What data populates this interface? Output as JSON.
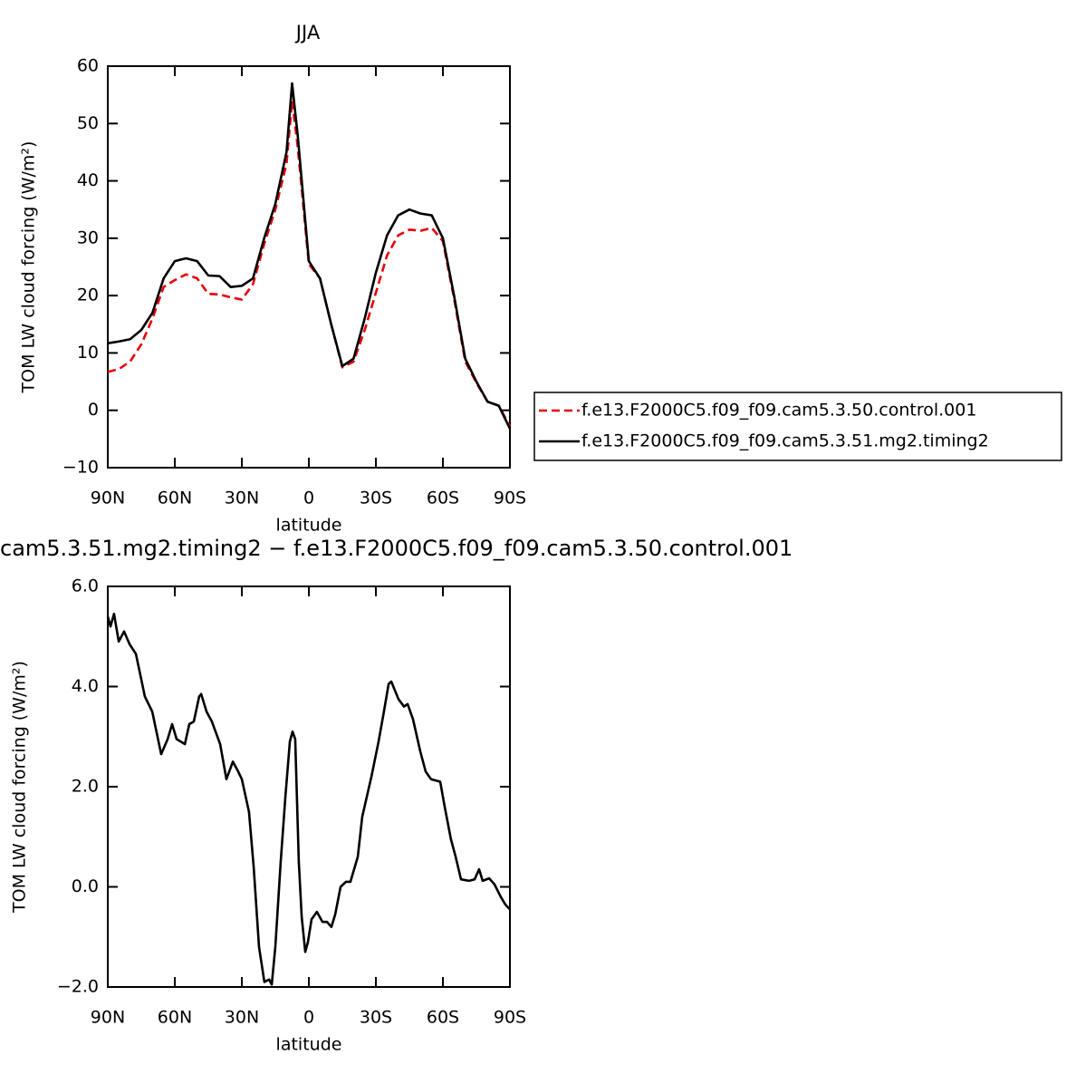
{
  "chart_data": [
    {
      "type": "line",
      "title": "JJA",
      "xlabel": "latitude",
      "ylabel": "TOM LW cloud forcing (W/m²)",
      "x": [
        90,
        85,
        80,
        75,
        70,
        65,
        60,
        55,
        50,
        45,
        40,
        35,
        30,
        25,
        20,
        15,
        10,
        7.5,
        5,
        0,
        -5,
        -10,
        -15,
        -20,
        -25,
        -30,
        -35,
        -40,
        -45,
        -50,
        -55,
        -60,
        -65,
        -70,
        -75,
        -80,
        -85,
        -90
      ],
      "xlim": [
        90,
        -90
      ],
      "xticks": [
        {
          "value": 90,
          "label": "90N"
        },
        {
          "value": 60,
          "label": "60N"
        },
        {
          "value": 30,
          "label": "30N"
        },
        0,
        {
          "value": -30,
          "label": "30S"
        },
        {
          "value": -60,
          "label": "60S"
        },
        {
          "value": -90,
          "label": "90S"
        }
      ],
      "ylim": [
        -10,
        60
      ],
      "yticks": [
        {
          "value": -10,
          "label": "−10"
        },
        0,
        10,
        20,
        30,
        40,
        50,
        60
      ],
      "legend": "right",
      "series": [
        {
          "name": "f.e13.F2000C5.f09_f09.cam5.3.50.control.001",
          "color": "#e8000b",
          "dashed": true,
          "values": [
            6.7,
            7.2,
            8.5,
            11.5,
            16,
            21.5,
            22.7,
            23.7,
            23,
            20.3,
            20.2,
            19.7,
            19.3,
            22,
            29,
            35,
            43,
            54,
            46,
            25.5,
            23,
            15,
            7.5,
            8.5,
            14,
            20.5,
            27,
            30.5,
            31.5,
            31.3,
            31.8,
            29.5,
            19.5,
            8.5,
            4.8,
            1.5,
            0.8,
            -2.8
          ]
        },
        {
          "name": "f.e13.F2000C5.f09_f09.cam5.3.51.mg2.timing2",
          "color": "#000000",
          "dashed": false,
          "values": [
            11.7,
            12,
            12.4,
            14,
            17,
            23,
            26,
            26.5,
            26,
            23.5,
            23.4,
            21.5,
            21.7,
            23,
            30,
            36,
            45,
            57,
            48,
            26,
            23,
            15,
            7.7,
            9,
            16,
            24,
            30.5,
            34,
            35,
            34.3,
            34,
            30,
            20,
            9,
            5,
            1.5,
            0.8,
            -3.2
          ]
        }
      ]
    },
    {
      "type": "line",
      "title": "cam5.3.51.mg2.timing2 − f.e13.F2000C5.f09_f09.cam5.3.50.control.001",
      "xlabel": "latitude",
      "ylabel": "TOM LW cloud forcing (W/m²)",
      "x": [
        90,
        88.8,
        87.2,
        85.1,
        82.7,
        80.3,
        77.4,
        73.4,
        70.1,
        66.1,
        63.2,
        61.2,
        59.2,
        55.5,
        53.5,
        51.5,
        49.1,
        48.2,
        45.8,
        43.4,
        39.7,
        36.9,
        34,
        31.6,
        30,
        26.8,
        24.7,
        22.3,
        19.9,
        17.8,
        16.6,
        15,
        12.6,
        10.5,
        8.5,
        7.3,
        6.1,
        4.5,
        3.2,
        1.6,
        0.4,
        -1.2,
        -3.6,
        -6.1,
        -8.1,
        -10.1,
        -11.8,
        -14.2,
        -16.6,
        -18.6,
        -21.9,
        -23.9,
        -28,
        -31.2,
        -33.6,
        -35.7,
        -36.9,
        -40.1,
        -42.6,
        -44.2,
        -46.6,
        -49.9,
        -52.3,
        -54.7,
        -58.8,
        -60.8,
        -63.6,
        -65.7,
        -68.1,
        -71.7,
        -74.2,
        -76.2,
        -77.8,
        -80.7,
        -83.1,
        -85.9,
        -87.9,
        -90
      ],
      "xlim": [
        90,
        -90
      ],
      "xticks": [
        {
          "value": 90,
          "label": "90N"
        },
        {
          "value": 60,
          "label": "60N"
        },
        {
          "value": 30,
          "label": "30N"
        },
        0,
        {
          "value": -30,
          "label": "30S"
        },
        {
          "value": -60,
          "label": "60S"
        },
        {
          "value": -90,
          "label": "90S"
        }
      ],
      "ylim": [
        -2,
        6
      ],
      "yticks": [
        {
          "value": -2,
          "label": "−2.0"
        },
        {
          "value": 0,
          "label": "0.0"
        },
        {
          "value": 2,
          "label": "2.0"
        },
        {
          "value": 4,
          "label": "4.0"
        },
        {
          "value": 6,
          "label": "6.0"
        }
      ],
      "series": [
        {
          "color": "#000000",
          "dashed": false,
          "values": [
            5.4,
            5.2,
            5.45,
            4.9,
            5.1,
            4.85,
            4.65,
            3.8,
            3.5,
            2.65,
            2.95,
            3.25,
            2.95,
            2.85,
            3.25,
            3.3,
            3.8,
            3.85,
            3.5,
            3.3,
            2.85,
            2.15,
            2.5,
            2.3,
            2.15,
            1.5,
            0.4,
            -1.2,
            -1.9,
            -1.85,
            -1.95,
            -1.2,
            0.5,
            1.8,
            2.9,
            3.1,
            2.95,
            0.5,
            -0.6,
            -1.3,
            -1.1,
            -0.65,
            -0.5,
            -0.7,
            -0.7,
            -0.8,
            -0.55,
            0,
            0.1,
            0.1,
            0.6,
            1.4,
            2.2,
            2.9,
            3.5,
            4.05,
            4.1,
            3.75,
            3.6,
            3.65,
            3.35,
            2.7,
            2.3,
            2.15,
            2.1,
            1.6,
            0.95,
            0.6,
            0.15,
            0.12,
            0.15,
            0.35,
            0.12,
            0.17,
            0.05,
            -0.2,
            -0.35,
            -0.45
          ]
        }
      ]
    }
  ]
}
